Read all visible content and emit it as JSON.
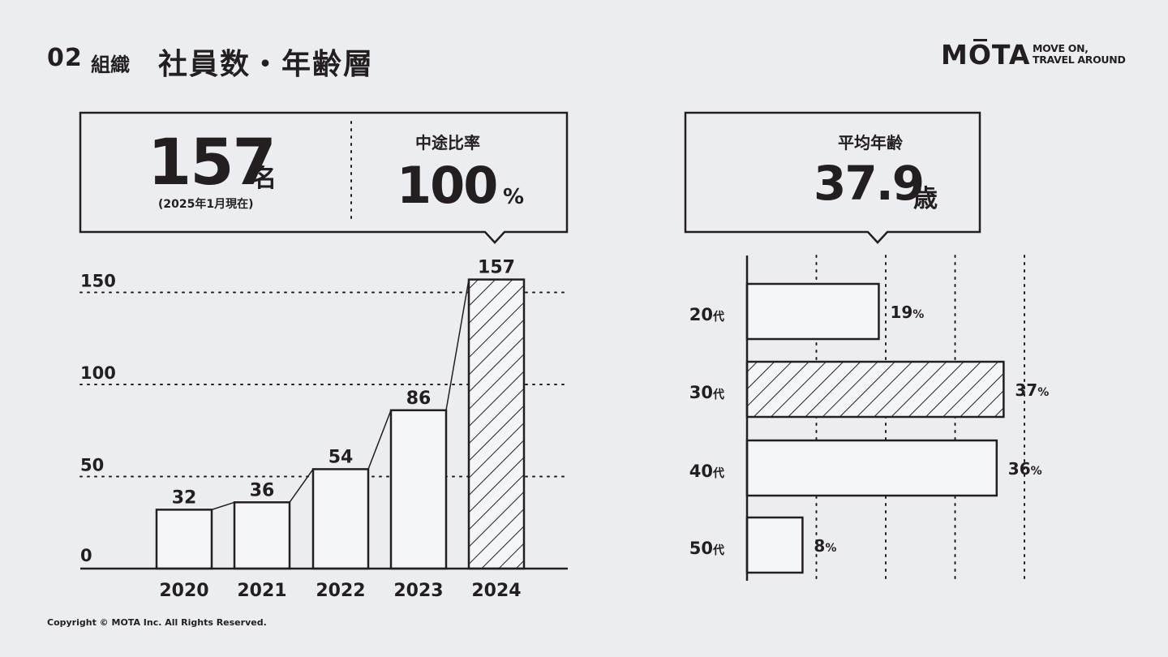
{
  "header": {
    "section_number": "02",
    "section_label": "組織",
    "title": "社員数・年齢層"
  },
  "brand": {
    "logo": "MOTA",
    "tagline_line1": "MOVE ON,",
    "tagline_line2": "TRAVEL AROUND"
  },
  "summary_employees": {
    "count": "157",
    "count_unit": "名",
    "note": "(2025年1月現在)",
    "ratio_label": "中途比率",
    "ratio_value": "100",
    "ratio_unit": "%"
  },
  "summary_age": {
    "label": "平均年齢",
    "value": "37.9",
    "unit": "歳"
  },
  "footer": {
    "copyright": "Copyright © MOTA Inc. All Rights Reserved."
  },
  "colors": {
    "background": "#ecedf1",
    "ink": "#231f20",
    "bar_fill": "#f4f5f7"
  },
  "chart_data": [
    {
      "type": "bar",
      "orientation": "vertical",
      "categories": [
        "2020",
        "2021",
        "2022",
        "2023",
        "2024"
      ],
      "values": [
        32,
        36,
        54,
        86,
        157
      ],
      "value_labels": [
        "32",
        "36",
        "54",
        "86",
        "157"
      ],
      "highlight_index": 4,
      "ylim": [
        0,
        157
      ],
      "yticks": [
        0,
        50,
        100,
        150
      ],
      "ytick_labels": [
        "0",
        "50",
        "100",
        "150"
      ],
      "grid": "dotted horizontal",
      "connector_lines": true
    },
    {
      "type": "bar",
      "orientation": "horizontal",
      "categories": [
        "20代",
        "30代",
        "40代",
        "50代"
      ],
      "category_numbers": [
        "20",
        "30",
        "40",
        "50"
      ],
      "category_suffix": "代",
      "values": [
        19,
        37,
        36,
        8
      ],
      "value_labels": [
        "19",
        "37",
        "36",
        "8"
      ],
      "value_unit": "%",
      "highlight_index": 1,
      "grid_values": [
        10,
        20,
        30,
        40
      ],
      "grid": "dotted vertical"
    }
  ]
}
